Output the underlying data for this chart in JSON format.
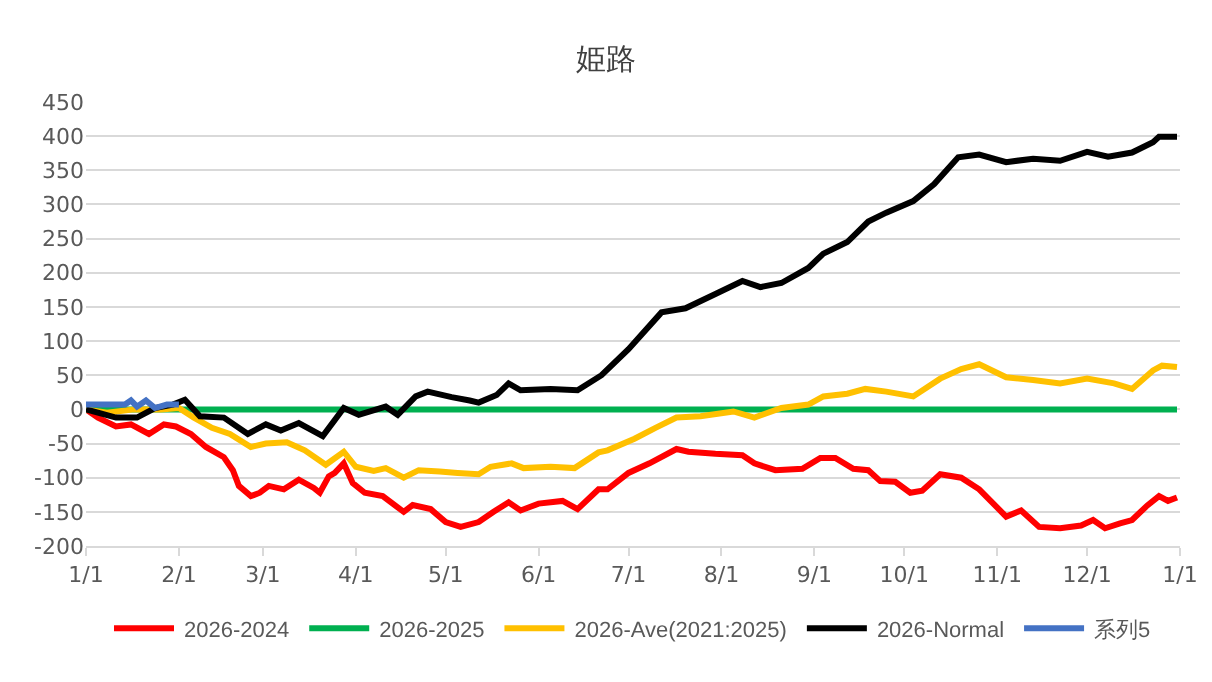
{
  "chart_data": {
    "type": "line",
    "title": "姫路",
    "xlim": [
      "2026-01-01",
      "2027-01-01"
    ],
    "xticks": [
      {
        "value": "2026-01-01",
        "label": "1/1"
      },
      {
        "value": "2026-02-01",
        "label": "2/1"
      },
      {
        "value": "2026-03-01",
        "label": "3/1"
      },
      {
        "value": "2026-04-01",
        "label": "4/1"
      },
      {
        "value": "2026-05-01",
        "label": "5/1"
      },
      {
        "value": "2026-06-01",
        "label": "6/1"
      },
      {
        "value": "2026-07-01",
        "label": "7/1"
      },
      {
        "value": "2026-08-01",
        "label": "8/1"
      },
      {
        "value": "2026-09-01",
        "label": "9/1"
      },
      {
        "value": "2026-10-01",
        "label": "10/1"
      },
      {
        "value": "2026-11-01",
        "label": "11/1"
      },
      {
        "value": "2026-12-01",
        "label": "12/1"
      },
      {
        "value": "2027-01-01",
        "label": "1/1"
      }
    ],
    "ylim": [
      -200,
      450
    ],
    "yticks": [
      -200,
      -150,
      -100,
      -50,
      0,
      50,
      100,
      150,
      200,
      250,
      300,
      350,
      400,
      450
    ],
    "grid": "y",
    "legend": "bottom",
    "marker": "none",
    "line_style": "solid",
    "series": [
      {
        "name": "2026-2024",
        "color": "#ff0000",
        "x": [
          "2026-01-01",
          "2026-01-05",
          "2026-01-11",
          "2026-01-16",
          "2026-01-22",
          "2026-01-27",
          "2026-01-31",
          "2026-02-05",
          "2026-02-10",
          "2026-02-16",
          "2026-02-19",
          "2026-02-21",
          "2026-02-25",
          "2026-02-28",
          "2026-03-03",
          "2026-03-08",
          "2026-03-13",
          "2026-03-18",
          "2026-03-20",
          "2026-03-23",
          "2026-03-25",
          "2026-03-28",
          "2026-03-31",
          "2026-04-04",
          "2026-04-10",
          "2026-04-17",
          "2026-04-20",
          "2026-04-26",
          "2026-05-01",
          "2026-05-06",
          "2026-05-12",
          "2026-05-17",
          "2026-05-22",
          "2026-05-26",
          "2026-06-01",
          "2026-06-09",
          "2026-06-14",
          "2026-06-21",
          "2026-06-24",
          "2026-07-01",
          "2026-07-08",
          "2026-07-17",
          "2026-07-21",
          "2026-07-30",
          "2026-08-08",
          "2026-08-12",
          "2026-08-19",
          "2026-08-28",
          "2026-09-03",
          "2026-09-08",
          "2026-09-14",
          "2026-09-19",
          "2026-09-23",
          "2026-09-28",
          "2026-10-03",
          "2026-10-07",
          "2026-10-13",
          "2026-10-20",
          "2026-10-26",
          "2026-11-04",
          "2026-11-09",
          "2026-11-15",
          "2026-11-22",
          "2026-11-29",
          "2026-12-03",
          "2026-12-07",
          "2026-12-12",
          "2026-12-16",
          "2026-12-21",
          "2026-12-25",
          "2026-12-28",
          "2026-12-31"
        ],
        "values": [
          0,
          -12,
          -25,
          -22,
          -36,
          -22,
          -25,
          -36,
          -55,
          -70,
          -89,
          -112,
          -127,
          -122,
          -112,
          -117,
          -103,
          -115,
          -122,
          -98,
          -93,
          -79,
          -108,
          -122,
          -127,
          -150,
          -140,
          -146,
          -165,
          -172,
          -165,
          -150,
          -136,
          -148,
          -138,
          -134,
          -146,
          -117,
          -117,
          -93,
          -79,
          -58,
          -62,
          -65,
          -67,
          -79,
          -89,
          -87,
          -71,
          -71,
          -87,
          -89,
          -105,
          -106,
          -122,
          -119,
          -95,
          -100,
          -117,
          -157,
          -148,
          -172,
          -174,
          -170,
          -162,
          -174,
          -167,
          -162,
          -141,
          -127,
          -134,
          -129
        ]
      },
      {
        "name": "2026-2025",
        "color": "#00b050",
        "x": [
          "2026-01-01",
          "2026-12-31"
        ],
        "values": [
          0,
          0
        ]
      },
      {
        "name": "2026-Ave(2021:2025)",
        "color": "#ffc000",
        "x": [
          "2026-01-01",
          "2026-01-08",
          "2026-01-17",
          "2026-01-26",
          "2026-02-01",
          "2026-02-06",
          "2026-02-12",
          "2026-02-18",
          "2026-02-25",
          "2026-03-02",
          "2026-03-09",
          "2026-03-15",
          "2026-03-22",
          "2026-03-28",
          "2026-04-01",
          "2026-04-07",
          "2026-04-11",
          "2026-04-17",
          "2026-04-22",
          "2026-04-29",
          "2026-05-05",
          "2026-05-12",
          "2026-05-16",
          "2026-05-23",
          "2026-05-27",
          "2026-06-05",
          "2026-06-13",
          "2026-06-21",
          "2026-06-24",
          "2026-07-03",
          "2026-07-10",
          "2026-07-17",
          "2026-07-25",
          "2026-08-05",
          "2026-08-12",
          "2026-08-21",
          "2026-08-30",
          "2026-09-04",
          "2026-09-12",
          "2026-09-18",
          "2026-09-25",
          "2026-10-04",
          "2026-10-13",
          "2026-10-20",
          "2026-10-26",
          "2026-11-04",
          "2026-11-13",
          "2026-11-22",
          "2026-12-01",
          "2026-12-10",
          "2026-12-16",
          "2026-12-23",
          "2026-12-26",
          "2026-12-31"
        ],
        "values": [
          0,
          -5,
          0,
          0,
          2,
          -12,
          -27,
          -36,
          -55,
          -50,
          -48,
          -60,
          -81,
          -62,
          -84,
          -90,
          -86,
          -100,
          -89,
          -91,
          -93,
          -95,
          -84,
          -79,
          -86,
          -84,
          -86,
          -63,
          -60,
          -43,
          -27,
          -12,
          -10,
          -3,
          -12,
          2,
          7,
          19,
          23,
          30,
          26,
          19,
          45,
          59,
          66,
          47,
          43,
          38,
          45,
          38,
          30,
          57,
          64,
          62
        ]
      },
      {
        "name": "2026-Normal",
        "color": "#000000",
        "x": [
          "2026-01-01",
          "2026-01-11",
          "2026-01-18",
          "2026-01-24",
          "2026-01-30",
          "2026-02-03",
          "2026-02-08",
          "2026-02-16",
          "2026-02-24",
          "2026-03-02",
          "2026-03-07",
          "2026-03-13",
          "2026-03-21",
          "2026-03-28",
          "2026-04-02",
          "2026-04-11",
          "2026-04-15",
          "2026-04-21",
          "2026-04-25",
          "2026-05-03",
          "2026-05-09",
          "2026-05-12",
          "2026-05-18",
          "2026-05-22",
          "2026-05-26",
          "2026-06-05",
          "2026-06-14",
          "2026-06-22",
          "2026-07-01",
          "2026-07-12",
          "2026-07-20",
          "2026-07-30",
          "2026-08-08",
          "2026-08-14",
          "2026-08-21",
          "2026-08-30",
          "2026-09-04",
          "2026-09-12",
          "2026-09-19",
          "2026-09-25",
          "2026-10-04",
          "2026-10-11",
          "2026-10-19",
          "2026-10-26",
          "2026-11-04",
          "2026-11-13",
          "2026-11-22",
          "2026-12-01",
          "2026-12-08",
          "2026-12-16",
          "2026-12-23",
          "2026-12-25",
          "2026-12-31"
        ],
        "values": [
          0,
          -12,
          -12,
          2,
          7,
          14,
          -10,
          -12,
          -36,
          -22,
          -31,
          -20,
          -39,
          2,
          -8,
          4,
          -8,
          19,
          26,
          18,
          13,
          10,
          21,
          38,
          28,
          30,
          28,
          50,
          88,
          142,
          148,
          169,
          188,
          179,
          185,
          207,
          228,
          245,
          275,
          288,
          305,
          330,
          369,
          373,
          362,
          367,
          364,
          377,
          370,
          376,
          391,
          399,
          399
        ]
      },
      {
        "name": "系列5",
        "color": "#4472c4",
        "x": [
          "2026-01-01",
          "2026-01-06",
          "2026-01-14",
          "2026-01-16",
          "2026-01-18",
          "2026-01-21",
          "2026-01-24",
          "2026-01-28",
          "2026-02-01"
        ],
        "values": [
          7,
          7,
          7,
          13,
          4,
          13,
          2,
          7,
          7
        ]
      }
    ]
  }
}
